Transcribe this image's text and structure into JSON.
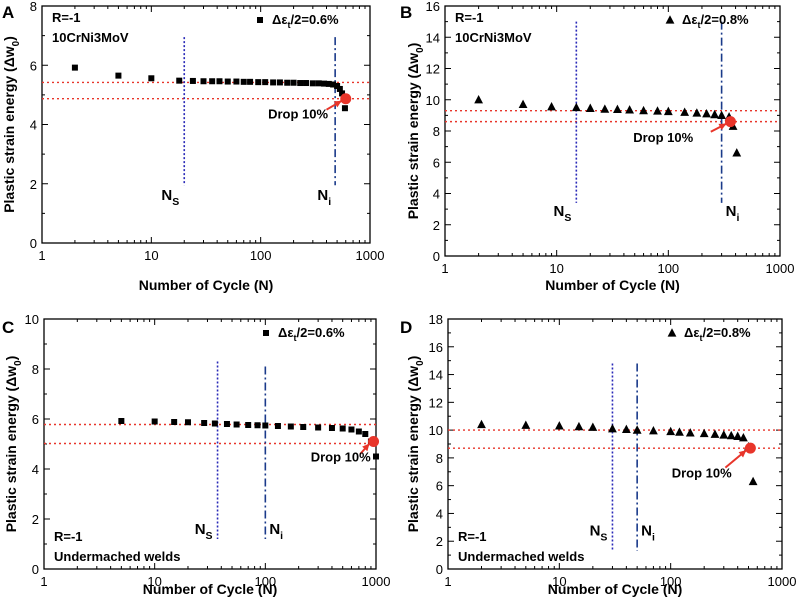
{
  "figure": {
    "colors": {
      "axis": "#000000",
      "points": "#000000",
      "ref_line": "#e8352a",
      "drop_marker": "#e8352a",
      "ns_line": "#2a2ab8",
      "ni_line": "#1a3a8a"
    }
  },
  "chart_data": [
    {
      "id": "A",
      "type": "scatter",
      "panel_label": "A",
      "title": "",
      "xlabel": "Number of Cycle (N)",
      "ylabel": "Plastic strain energy (Δw",
      "ylabel_sub": "0",
      "ylabel_tail": ")",
      "xscale": "log",
      "xlim": [
        1,
        1000
      ],
      "ylim": [
        0,
        8
      ],
      "xticks": [
        1,
        10,
        100,
        1000
      ],
      "xtick_labels": [
        "1",
        "10",
        "100",
        "1000"
      ],
      "yticks": [
        0,
        2,
        4,
        6,
        8
      ],
      "ytick_labels": [
        "0",
        "2",
        "4",
        "6",
        "8"
      ],
      "marker": "square",
      "legend": {
        "marker": "square",
        "text": "Δε",
        "sub": "t",
        "tail": "/2=0.6%",
        "position": "top-right"
      },
      "info_top": [
        "R=-1",
        "10CrNi3MoV"
      ],
      "info_bottom": [],
      "points": [
        [
          2,
          5.92
        ],
        [
          5,
          5.65
        ],
        [
          10,
          5.56
        ],
        [
          18,
          5.48
        ],
        [
          24,
          5.47
        ],
        [
          30,
          5.46
        ],
        [
          36,
          5.46
        ],
        [
          42,
          5.46
        ],
        [
          50,
          5.45
        ],
        [
          60,
          5.45
        ],
        [
          70,
          5.44
        ],
        [
          80,
          5.44
        ],
        [
          95,
          5.43
        ],
        [
          110,
          5.43
        ],
        [
          130,
          5.42
        ],
        [
          150,
          5.42
        ],
        [
          175,
          5.41
        ],
        [
          200,
          5.41
        ],
        [
          230,
          5.4
        ],
        [
          260,
          5.4
        ],
        [
          300,
          5.39
        ],
        [
          340,
          5.39
        ],
        [
          380,
          5.38
        ],
        [
          420,
          5.37
        ],
        [
          460,
          5.35
        ],
        [
          500,
          5.3
        ],
        [
          530,
          5.2
        ],
        [
          555,
          5.05
        ],
        [
          575,
          4.88
        ],
        [
          590,
          4.55
        ]
      ],
      "ref_lines": [
        5.42,
        4.87
      ],
      "drop_point": [
        600,
        4.87
      ],
      "drop_label": "Drop 10%",
      "drop_label_pos": [
        220,
        4.2
      ],
      "arrow_from": [
        400,
        4.5
      ],
      "ns": {
        "x": 20,
        "label": "N",
        "sub": "S",
        "label_y": 1.45,
        "y_top": 6.95,
        "y_bottom": 1.95
      },
      "ni": {
        "x": 480,
        "label": "N",
        "sub": "i",
        "label_y": 1.45,
        "y_top": 6.95,
        "y_bottom": 1.95
      }
    },
    {
      "id": "B",
      "type": "scatter",
      "panel_label": "B",
      "title": "",
      "xlabel": "Number of Cycle (N)",
      "ylabel": "Plastic strain energy (Δw",
      "ylabel_sub": "0",
      "ylabel_tail": ")",
      "xscale": "log",
      "xlim": [
        1,
        1000
      ],
      "ylim": [
        0,
        16
      ],
      "xticks": [
        1,
        10,
        100,
        1000
      ],
      "xtick_labels": [
        "1",
        "10",
        "100",
        "1000"
      ],
      "yticks": [
        0,
        2,
        4,
        6,
        8,
        10,
        12,
        14,
        16
      ],
      "ytick_labels": [
        "0",
        "2",
        "4",
        "6",
        "8",
        "10",
        "12",
        "14",
        "16"
      ],
      "marker": "triangle",
      "legend": {
        "marker": "triangle",
        "text": "Δε",
        "sub": "t",
        "tail": "/2=0.8%",
        "position": "top-right"
      },
      "info_top": [
        "R=-1",
        "10CrNi3MoV"
      ],
      "info_bottom": [],
      "points": [
        [
          2,
          10.0
        ],
        [
          5,
          9.7
        ],
        [
          9,
          9.55
        ],
        [
          15,
          9.5
        ],
        [
          20,
          9.45
        ],
        [
          27,
          9.4
        ],
        [
          35,
          9.38
        ],
        [
          45,
          9.35
        ],
        [
          60,
          9.3
        ],
        [
          80,
          9.28
        ],
        [
          100,
          9.25
        ],
        [
          140,
          9.2
        ],
        [
          180,
          9.15
        ],
        [
          220,
          9.1
        ],
        [
          260,
          9.05
        ],
        [
          300,
          9.0
        ],
        [
          350,
          8.9
        ],
        [
          380,
          8.3
        ],
        [
          410,
          6.6
        ]
      ],
      "ref_lines": [
        9.3,
        8.6
      ],
      "drop_point": [
        360,
        8.6
      ],
      "drop_label": "Drop 10%",
      "drop_label_pos": [
        90,
        7.3
      ],
      "arrow_from": [
        240,
        7.95
      ],
      "ns": {
        "x": 15,
        "label": "N",
        "sub": "S",
        "label_y": 2.55,
        "y_top": 15.0,
        "y_bottom": 3.4
      },
      "ni": {
        "x": 300,
        "label": "N",
        "sub": "i",
        "label_y": 2.55,
        "y_top": 15.0,
        "y_bottom": 3.4
      }
    },
    {
      "id": "C",
      "type": "scatter",
      "panel_label": "C",
      "title": "",
      "xlabel": "Number of Cycle (N)",
      "ylabel": "Plastic strain energy (Δw",
      "ylabel_sub": "0",
      "ylabel_tail": ")",
      "xscale": "log",
      "xlim": [
        1,
        1000
      ],
      "ylim": [
        0,
        10
      ],
      "xticks": [
        1,
        10,
        100,
        1000
      ],
      "xtick_labels": [
        "1",
        "10",
        "100",
        "1000"
      ],
      "yticks": [
        0,
        2,
        4,
        6,
        8,
        10
      ],
      "ytick_labels": [
        "0",
        "2",
        "4",
        "6",
        "8",
        "10"
      ],
      "marker": "square",
      "legend": {
        "marker": "square",
        "text": "Δε",
        "sub": "t",
        "tail": "/2=0.6%",
        "position": "top-right"
      },
      "info_top": [],
      "info_bottom": [
        "R=-1",
        "Undermached welds"
      ],
      "points": [
        [
          5,
          5.92
        ],
        [
          10,
          5.9
        ],
        [
          15,
          5.88
        ],
        [
          20,
          5.87
        ],
        [
          28,
          5.84
        ],
        [
          35,
          5.82
        ],
        [
          45,
          5.8
        ],
        [
          55,
          5.78
        ],
        [
          70,
          5.76
        ],
        [
          85,
          5.75
        ],
        [
          100,
          5.74
        ],
        [
          130,
          5.72
        ],
        [
          170,
          5.7
        ],
        [
          220,
          5.68
        ],
        [
          300,
          5.66
        ],
        [
          400,
          5.64
        ],
        [
          500,
          5.62
        ],
        [
          600,
          5.58
        ],
        [
          700,
          5.5
        ],
        [
          800,
          5.4
        ],
        [
          900,
          5.1
        ],
        [
          1000,
          4.5
        ]
      ],
      "ref_lines": [
        5.78,
        5.02
      ],
      "drop_point": [
        950,
        5.1
      ],
      "drop_label": "Drop 10%",
      "drop_label_pos": [
        480,
        4.3
      ],
      "arrow_from": [
        720,
        4.6
      ],
      "ns": {
        "x": 37,
        "label": "N",
        "sub": "S",
        "label_y": 1.4,
        "y_top": 8.3,
        "y_bottom": 1.2
      },
      "ni": {
        "x": 100,
        "label": "N",
        "sub": "i",
        "label_y": 1.4,
        "y_top": 8.1,
        "y_bottom": 1.2
      }
    },
    {
      "id": "D",
      "type": "scatter",
      "panel_label": "D",
      "title": "",
      "xlabel": "Number of Cycle (N)",
      "ylabel": "Plastic strain energy (Δw",
      "ylabel_sub": "0",
      "ylabel_tail": ")",
      "xscale": "log",
      "xlim": [
        1,
        1000
      ],
      "ylim": [
        0,
        18
      ],
      "xticks": [
        1,
        10,
        100,
        1000
      ],
      "xtick_labels": [
        "1",
        "10",
        "100",
        "1000"
      ],
      "yticks": [
        0,
        2,
        4,
        6,
        8,
        10,
        12,
        14,
        16,
        18
      ],
      "ytick_labels": [
        "0",
        "2",
        "4",
        "6",
        "8",
        "10",
        "12",
        "14",
        "16",
        "18"
      ],
      "marker": "triangle",
      "legend": {
        "marker": "triangle",
        "text": "Δε",
        "sub": "t",
        "tail": "/2=0.8%",
        "position": "top-right"
      },
      "info_top": [],
      "info_bottom": [
        "R=-1",
        "Undermached welds"
      ],
      "points": [
        [
          2,
          10.4
        ],
        [
          5,
          10.35
        ],
        [
          10,
          10.3
        ],
        [
          15,
          10.25
        ],
        [
          20,
          10.2
        ],
        [
          30,
          10.1
        ],
        [
          40,
          10.05
        ],
        [
          50,
          10.0
        ],
        [
          70,
          9.95
        ],
        [
          100,
          9.9
        ],
        [
          120,
          9.85
        ],
        [
          150,
          9.8
        ],
        [
          200,
          9.75
        ],
        [
          250,
          9.7
        ],
        [
          300,
          9.65
        ],
        [
          350,
          9.6
        ],
        [
          400,
          9.55
        ],
        [
          450,
          9.45
        ],
        [
          500,
          8.8
        ],
        [
          550,
          6.3
        ]
      ],
      "ref_lines": [
        10.0,
        8.7
      ],
      "drop_point": [
        520,
        8.7
      ],
      "drop_label": "Drop 10%",
      "drop_label_pos": [
        190,
        6.6
      ],
      "arrow_from": [
        310,
        7.3
      ],
      "ns": {
        "x": 30,
        "label": "N",
        "sub": "S",
        "label_y": 2.4,
        "y_top": 14.8,
        "y_bottom": 1.3
      },
      "ni": {
        "x": 50,
        "label": "N",
        "sub": "i",
        "label_y": 2.4,
        "y_top": 14.8,
        "y_bottom": 1.3
      }
    }
  ]
}
